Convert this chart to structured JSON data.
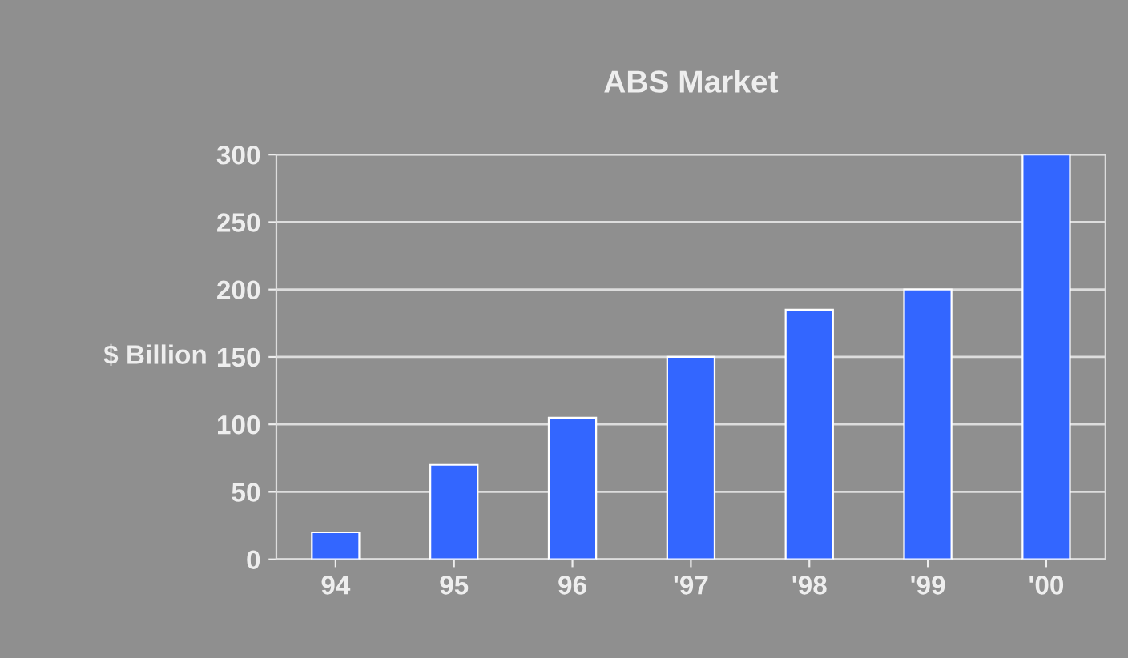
{
  "chart_data": {
    "type": "bar",
    "title": "ABS Market",
    "ylabel": "$ Billion",
    "categories": [
      "94",
      "95",
      "96",
      "'97",
      "'98",
      "'99",
      "'00"
    ],
    "values": [
      20,
      70,
      105,
      150,
      185,
      200,
      300
    ],
    "color": "#3366ff",
    "ylim": [
      0,
      300
    ],
    "yticks": [
      0,
      50,
      100,
      150,
      200,
      250,
      300
    ],
    "grid": "y"
  }
}
